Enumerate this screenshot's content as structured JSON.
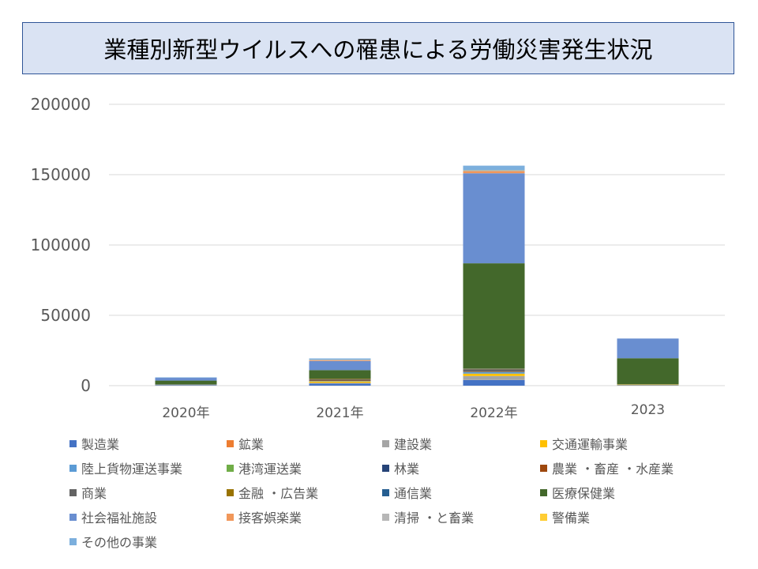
{
  "chart_data": {
    "type": "bar",
    "stacked": true,
    "title": "業種別新型ウイルスへの罹患による労働災害発生状況",
    "categories": [
      "2020年",
      "2021年",
      "2022年",
      "2023"
    ],
    "ylim": [
      0,
      200000
    ],
    "yticks": [
      0,
      50000,
      100000,
      150000,
      200000
    ],
    "grid": true,
    "legend_position": "bottom",
    "series": [
      {
        "name": "製造業",
        "color": "#4472C4",
        "values": [
          400,
          1500,
          4000,
          300
        ]
      },
      {
        "name": "鉱業",
        "color": "#ED7D31",
        "values": [
          0,
          0,
          50,
          0
        ]
      },
      {
        "name": "建設業",
        "color": "#A5A5A5",
        "values": [
          100,
          500,
          2800,
          100
        ]
      },
      {
        "name": "交通運輸事業",
        "color": "#FFC000",
        "values": [
          100,
          1000,
          1700,
          400
        ]
      },
      {
        "name": "陸上貨物運送事業",
        "color": "#5B9BD5",
        "values": [
          100,
          300,
          1000,
          100
        ]
      },
      {
        "name": "港湾運送業",
        "color": "#70AD47",
        "values": [
          0,
          50,
          100,
          0
        ]
      },
      {
        "name": "林業",
        "color": "#264478",
        "values": [
          0,
          0,
          50,
          0
        ]
      },
      {
        "name": "農業 ・畜産 ・水産業",
        "color": "#9E480E",
        "values": [
          0,
          300,
          300,
          0
        ]
      },
      {
        "name": "商業",
        "color": "#636363",
        "values": [
          200,
          800,
          1700,
          100
        ]
      },
      {
        "name": "金融 ・広告業",
        "color": "#997300",
        "values": [
          0,
          500,
          300,
          0
        ]
      },
      {
        "name": "通信業",
        "color": "#255E91",
        "values": [
          0,
          100,
          200,
          0
        ]
      },
      {
        "name": "医療保健業",
        "color": "#43682B",
        "values": [
          2700,
          6000,
          74800,
          18500
        ]
      },
      {
        "name": "社会福祉施設",
        "color": "#698ED0",
        "values": [
          2000,
          6500,
          64000,
          14000
        ]
      },
      {
        "name": "接客娯楽業",
        "color": "#F1975A",
        "values": [
          0,
          600,
          1500,
          0
        ]
      },
      {
        "name": "清掃 ・と畜業",
        "color": "#B7B7B7",
        "values": [
          0,
          100,
          300,
          0
        ]
      },
      {
        "name": "警備業",
        "color": "#FFCD33",
        "values": [
          0,
          100,
          200,
          0
        ]
      },
      {
        "name": "その他の事業",
        "color": "#7CAFDD",
        "values": [
          300,
          1000,
          3400,
          0
        ]
      }
    ]
  }
}
